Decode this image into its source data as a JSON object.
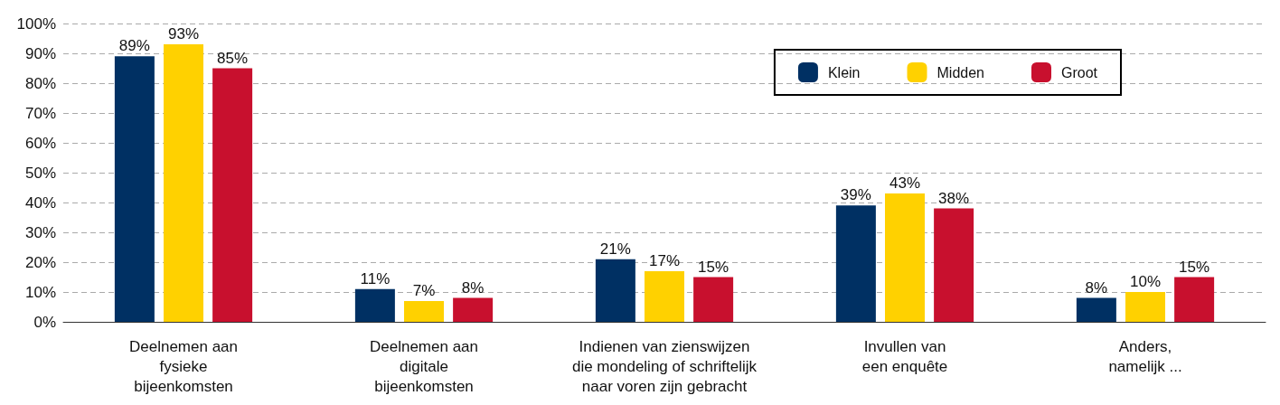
{
  "chart_data": {
    "type": "bar",
    "categories": [
      "Deelnemen aan\nfysieke\nbijeenkomsten",
      "Deelnemen aan\ndigitale\nbijeenkomsten",
      "Indienen van zienswijzen\ndie mondeling of schriftelijk\nnaar voren zijn gebracht",
      "Invullen van\neen enquête",
      "Anders,\nnamelijk ..."
    ],
    "series": [
      {
        "name": "Klein",
        "color": "#003063",
        "values": [
          89,
          11,
          21,
          39,
          8
        ],
        "value_labels": [
          "89%",
          "11%",
          "21%",
          "39%",
          "8%"
        ]
      },
      {
        "name": "Midden",
        "color": "#ffd100",
        "values": [
          93,
          7,
          17,
          43,
          10
        ],
        "value_labels": [
          "93%",
          "7%",
          "17%",
          "43%",
          "10%"
        ]
      },
      {
        "name": "Groot",
        "color": "#c8102e",
        "values": [
          85,
          8,
          15,
          38,
          15
        ],
        "value_labels": [
          "85%",
          "8%",
          "15%",
          "38%",
          "15%"
        ]
      }
    ],
    "ylim": [
      0,
      100
    ],
    "yticks": [
      {
        "value": 0,
        "label": "0%"
      },
      {
        "value": 10,
        "label": "10%"
      },
      {
        "value": 20,
        "label": "20%"
      },
      {
        "value": 30,
        "label": "30%"
      },
      {
        "value": 40,
        "label": "40%"
      },
      {
        "value": 50,
        "label": "50%"
      },
      {
        "value": 60,
        "label": "60%"
      },
      {
        "value": 70,
        "label": "70%"
      },
      {
        "value": 80,
        "label": "80%"
      },
      {
        "value": 90,
        "label": "90%"
      },
      {
        "value": 100,
        "label": "100%"
      }
    ],
    "grid": "y",
    "legend": "top right"
  }
}
